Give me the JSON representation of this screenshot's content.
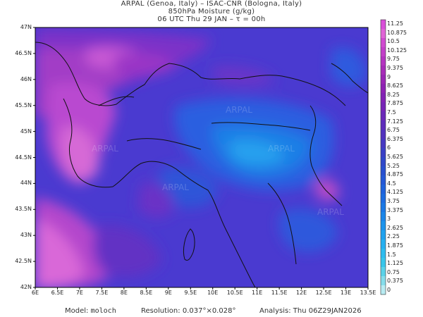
{
  "header": {
    "line1": "ARPAL (Genoa, Italy)  –  ISAC-CNR (Bologna, Italy)",
    "line2": "850hPa Moisture (g/kg)",
    "line3": "06 UTC Thu 29 JAN  –  τ = 00h"
  },
  "map": {
    "lat_labels": [
      "47N",
      "46.5N",
      "46N",
      "45.5N",
      "45N",
      "44.5N",
      "44N",
      "43.5N",
      "43N",
      "42.5N",
      "42N"
    ],
    "lon_labels": [
      "6E",
      "6.5E",
      "7E",
      "7.5E",
      "8E",
      "8.5E",
      "9E",
      "9.5E",
      "10E",
      "10.5E",
      "11E",
      "11.5E",
      "12E",
      "12.5E",
      "13E",
      "13.5E"
    ],
    "watermark": "ARPAL"
  },
  "colorbar": {
    "labels": [
      "11.25",
      "10.875",
      "10.5",
      "10.125",
      "9.75",
      "9.375",
      "9",
      "8.625",
      "8.25",
      "7.875",
      "7.5",
      "7.125",
      "6.75",
      "6.375",
      "6",
      "5.625",
      "5.25",
      "4.875",
      "4.5",
      "4.125",
      "3.75",
      "3.375",
      "3",
      "2.625",
      "2.25",
      "1.875",
      "1.5",
      "1.125",
      "0.75",
      "0.375",
      "0"
    ],
    "colors": [
      "#d94fd9",
      "#e064d6",
      "#d04ad0",
      "#c23fc8",
      "#b434c0",
      "#a72cb8",
      "#9a26b4",
      "#8e22b3",
      "#8222b4",
      "#7624b6",
      "#6a28b8",
      "#5e2cbb",
      "#5232be",
      "#4638c2",
      "#3a40c6",
      "#3048ca",
      "#2850cf",
      "#2458d6",
      "#1f62dc",
      "#1c6ce0",
      "#1a78e4",
      "#1a86e8",
      "#1c94ec",
      "#20a2ee",
      "#26b0f0",
      "#2ebcee",
      "#38c6ea",
      "#5ad2e8",
      "#86ddea",
      "#b8ebf2"
    ]
  },
  "footer": {
    "model_label": "Model:",
    "model_value": "moloch",
    "resolution_label": "Resolution:",
    "resolution_value": "0.037°×0.028°",
    "analysis_label": "Analysis:",
    "analysis_value": "Thu 06Z29JAN2026"
  }
}
